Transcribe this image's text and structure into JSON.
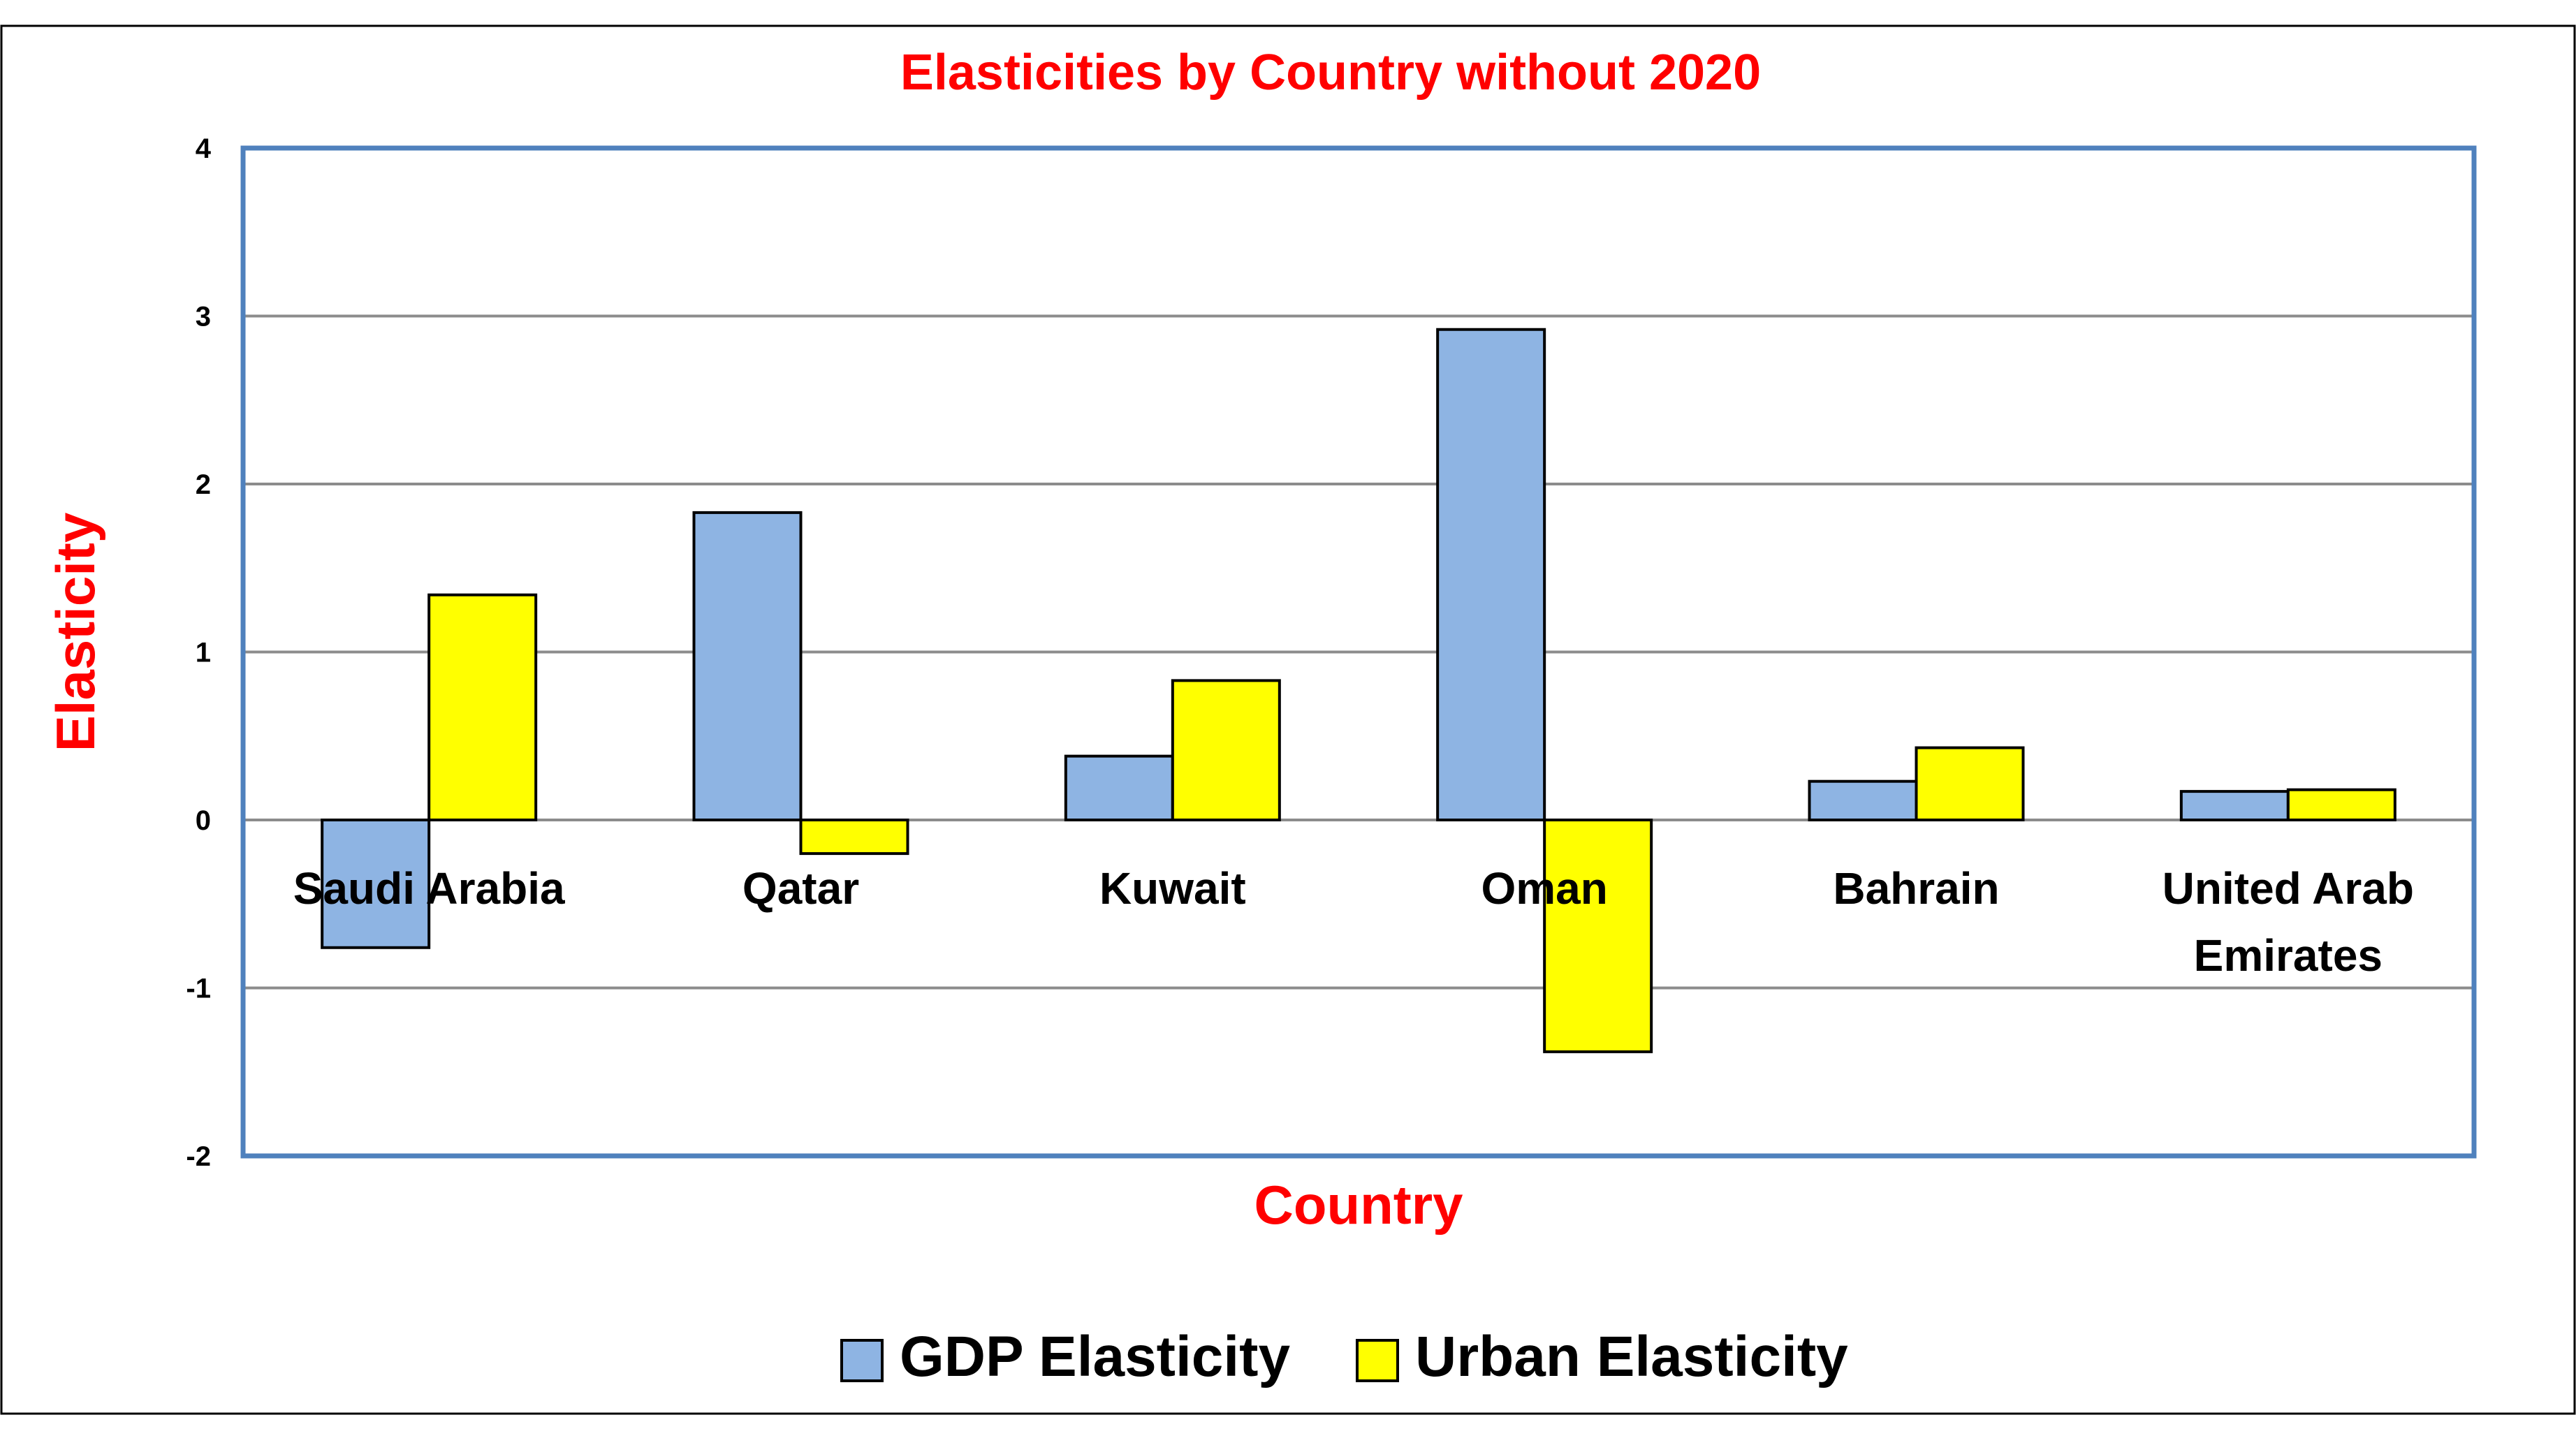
{
  "chart_data": {
    "type": "bar",
    "title": "Elasticities by Country without 2020",
    "xlabel": "Country",
    "ylabel": "Elasticity",
    "categories": [
      "Saudi Arabia",
      "Qatar",
      "Kuwait",
      "Oman",
      "Bahrain",
      "United Arab Emirates"
    ],
    "category_lines": [
      [
        "Saudi Arabia"
      ],
      [
        "Qatar"
      ],
      [
        "Kuwait"
      ],
      [
        "Oman"
      ],
      [
        "Bahrain"
      ],
      [
        "United Arab",
        "Emirates"
      ]
    ],
    "series": [
      {
        "name": "GDP Elasticity",
        "color": "#8EB4E3",
        "values": [
          -0.76,
          1.83,
          0.38,
          2.92,
          0.23,
          0.17
        ]
      },
      {
        "name": "Urban Elasticity",
        "color": "#FFFF00",
        "values": [
          1.34,
          -0.2,
          0.83,
          -1.38,
          0.43,
          0.18
        ]
      }
    ],
    "ylim": [
      -2,
      4
    ],
    "yticks": [
      "-2",
      "-1",
      "0",
      "1",
      "2",
      "3",
      "4"
    ],
    "grid": true,
    "legend_position": "bottom",
    "colors": {
      "title": "#FF0000",
      "axis_label": "#FF0000",
      "plot_border": "#4F81BD",
      "gridline": "#8C8C8C",
      "bar_outline": "#000000"
    }
  }
}
